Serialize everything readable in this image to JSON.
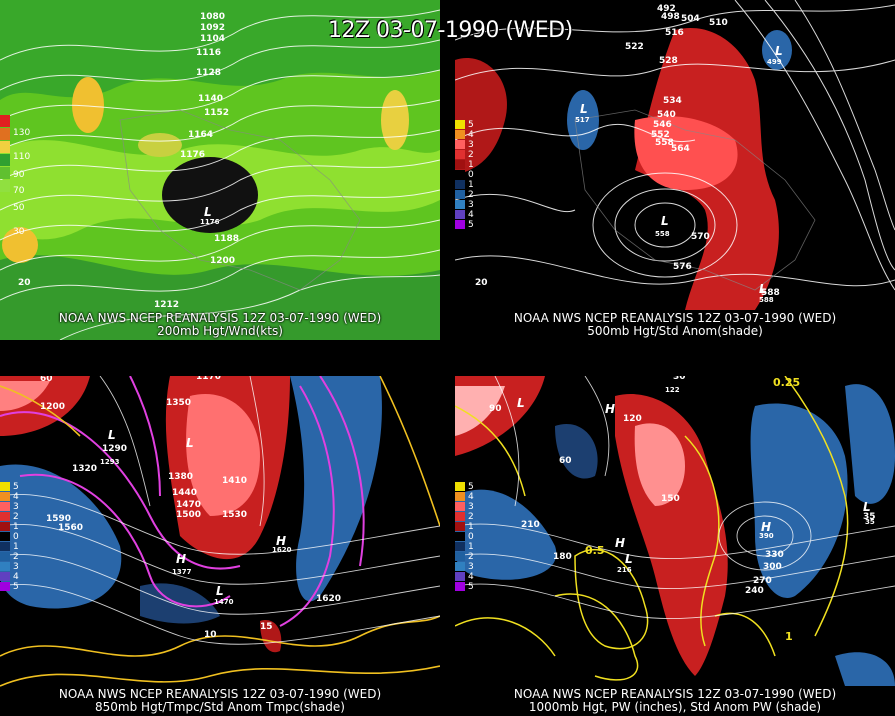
{
  "header": {
    "title": "12Z 03-07-1990 (WED)"
  },
  "panels": [
    {
      "id": "p1",
      "caption_line1": "NOAA NWS NCEP REANALYSIS 12Z 03-07-1990 (WED)",
      "caption_line2": "200mb Hgt/Wnd(kts)",
      "legend": {
        "labels": [
          "130",
          "110",
          "90",
          "70",
          "50",
          "30"
        ],
        "colors": [
          "#e02020",
          "#e07020",
          "#f0d040",
          "#30a030",
          "#60c030",
          "#90e040"
        ]
      },
      "contour_labels": [
        "1080",
        "1092",
        "1104",
        "1116",
        "1128",
        "1140",
        "1152",
        "1164",
        "1176",
        "1188",
        "1200",
        "1212",
        "20"
      ],
      "center_marker": "L",
      "center_value": "1176"
    },
    {
      "id": "p2",
      "caption_line1": "NOAA NWS NCEP REANALYSIS 12Z 03-07-1990 (WED)",
      "caption_line2": "500mb Hgt/Std Anom(shade)",
      "legend": {
        "labels": [
          "5",
          "4",
          "3",
          "2",
          "1",
          "0",
          "1",
          "2",
          "3",
          "4",
          "5"
        ],
        "colors": [
          "#f0e000",
          "#f09020",
          "#ff6060",
          "#e03030",
          "#a01010",
          "#000000",
          "#103060",
          "#2060a0",
          "#3080c0",
          "#6040c0",
          "#a000e0"
        ]
      },
      "contour_labels": [
        "492",
        "498",
        "504",
        "510",
        "516",
        "522",
        "528",
        "534",
        "540",
        "546",
        "552",
        "558",
        "564",
        "570",
        "576",
        "588",
        "20"
      ],
      "centers": [
        "L",
        "L",
        "L",
        "L"
      ],
      "center_values": [
        "517",
        "499",
        "558",
        "588"
      ]
    },
    {
      "id": "p3",
      "caption_line1": "NOAA NWS NCEP REANALYSIS 12Z 03-07-1990 (WED)",
      "caption_line2": "850mb Hgt/Tmpc/Std Anom Tmpc(shade)",
      "legend": {
        "labels": [
          "5",
          "4",
          "3",
          "2",
          "1",
          "0",
          "1",
          "2",
          "3",
          "4",
          "5"
        ],
        "colors": [
          "#f0e000",
          "#f09020",
          "#ff6060",
          "#e03030",
          "#a01010",
          "#000000",
          "#103060",
          "#2060a0",
          "#3080c0",
          "#6040c0",
          "#a000e0"
        ]
      },
      "contour_labels": [
        "1170",
        "1200",
        "1290",
        "1320",
        "1350",
        "1380",
        "1410",
        "1440",
        "1470",
        "1500",
        "1530",
        "1560",
        "1590",
        "1620",
        "15",
        "10",
        "60"
      ],
      "centers": [
        "L",
        "L",
        "H",
        "L",
        "H"
      ],
      "center_values": [
        "1293",
        "1377",
        "1470",
        "1620"
      ]
    },
    {
      "id": "p4",
      "caption_line1": "NOAA NWS NCEP REANALYSIS 12Z 03-07-1990 (WED)",
      "caption_line2": "1000mb Hgt, PW (inches), Std Anom PW (shade)",
      "legend": {
        "labels": [
          "5",
          "4",
          "3",
          "2",
          "1",
          "0",
          "1",
          "2",
          "3",
          "4",
          "5"
        ],
        "colors": [
          "#f0e000",
          "#f09020",
          "#ff6060",
          "#e03030",
          "#a01010",
          "#000000",
          "#103060",
          "#2060a0",
          "#3080c0",
          "#6040c0",
          "#a000e0"
        ]
      },
      "contour_labels": [
        "0.25",
        "0.5",
        "1",
        "30",
        "60",
        "90",
        "120",
        "150",
        "180",
        "210",
        "240",
        "270",
        "300",
        "330",
        "35"
      ],
      "centers": [
        "L",
        "H",
        "H",
        "L",
        "H",
        "L"
      ],
      "center_values": [
        "122",
        "390",
        "216",
        "35"
      ]
    }
  ]
}
